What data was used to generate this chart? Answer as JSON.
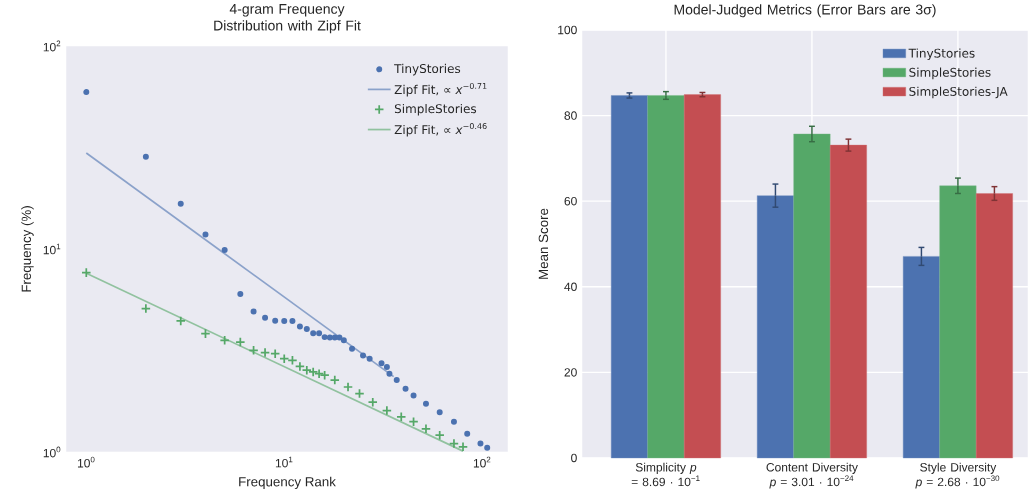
{
  "chart_data": [
    {
      "type": "scatter",
      "title": "4-gram Frequency Distribution with Zipf Fit",
      "xlabel": "Frequency Rank",
      "ylabel": "Frequency (%)",
      "log": "xy",
      "xlim": [
        0.79,
        135
      ],
      "ylim": [
        1,
        100
      ],
      "xticks": [
        {
          "value": 1,
          "label": "10$^{0}$"
        },
        {
          "value": 10,
          "label": "10$^{1}$"
        },
        {
          "value": 100,
          "label": "10$^{2}$"
        }
      ],
      "yticks": [
        {
          "value": 1,
          "label": "10$^{0}$"
        },
        {
          "value": 10,
          "label": "10$^{1}$"
        },
        {
          "value": 100,
          "label": "10$^{2}$"
        }
      ],
      "legend": "top right",
      "series": [
        {
          "name": "TinyStories",
          "type": "scatter",
          "marker": "circle",
          "color": "#4c72b0",
          "x": [
            1,
            2,
            3,
            4,
            5,
            6,
            7,
            8,
            9,
            10,
            11,
            12,
            13,
            14,
            15,
            16,
            17,
            18,
            19,
            20,
            22,
            25,
            27,
            31,
            33,
            34,
            37,
            41,
            45,
            52,
            61,
            72,
            84,
            98,
            106
          ],
          "values": [
            59.3,
            28.5,
            16.7,
            11.8,
            9.9,
            6.0,
            4.92,
            4.59,
            4.43,
            4.42,
            4.42,
            4.15,
            4.03,
            3.85,
            3.85,
            3.68,
            3.66,
            3.66,
            3.66,
            3.55,
            3.23,
            2.99,
            2.88,
            2.74,
            2.62,
            2.43,
            2.26,
            2.05,
            1.9,
            1.73,
            1.57,
            1.41,
            1.23,
            1.1,
            1.05
          ]
        },
        {
          "name": "Zipf Fit, ∝ *x*$^{−0.71}$",
          "type": "line",
          "color": "#8ba2ca",
          "x": [
            1,
            35.7
          ],
          "values": [
            29.7,
            2.35
          ]
        },
        {
          "name": "SimpleStories",
          "type": "scatter",
          "marker": "cross",
          "color": "#55a868",
          "x": [
            1,
            2,
            3,
            4,
            5,
            6,
            7,
            8,
            9,
            10,
            11,
            12,
            13,
            14,
            15,
            16,
            18,
            21,
            24,
            28,
            33,
            39,
            45,
            52,
            61,
            72,
            80
          ],
          "values": [
            7.65,
            5.09,
            4.42,
            3.83,
            3.55,
            3.48,
            3.17,
            3.09,
            3.05,
            2.88,
            2.83,
            2.64,
            2.53,
            2.48,
            2.43,
            2.39,
            2.26,
            2.09,
            1.94,
            1.76,
            1.6,
            1.49,
            1.41,
            1.3,
            1.21,
            1.1,
            1.06
          ]
        },
        {
          "name": "Zipf Fit, ∝ *x*$^{−0.46}$",
          "type": "line",
          "color": "#91c29f",
          "x": [
            1,
            80
          ],
          "values": [
            7.6,
            1.01
          ]
        }
      ]
    },
    {
      "type": "bar",
      "title": "Model-Judged Metrics (Error Bars are 3σ)",
      "ylabel": "Mean Score",
      "ylim": [
        0,
        100
      ],
      "yticks": [
        0,
        20,
        40,
        60,
        80,
        100
      ],
      "grid": true,
      "legend": "top right",
      "categories": [
        "Simplicity *p* = 8.69 · 10$^{−1}$",
        "Content Diversity *p* = 3.01 · 10$^{−24}$",
        "Style Diversity *p* = 2.68 · 10$^{−30}$"
      ],
      "series": [
        {
          "name": "TinyStories",
          "color": "#4c72b0",
          "values": [
            84.7,
            61.3,
            47.1
          ],
          "errors": [
            0.6,
            2.7,
            2.1
          ]
        },
        {
          "name": "SimpleStories",
          "color": "#55a868",
          "values": [
            84.7,
            75.7,
            63.6
          ],
          "errors": [
            0.9,
            1.8,
            1.8
          ]
        },
        {
          "name": "SimpleStories-JA",
          "color": "#c44e52",
          "values": [
            84.9,
            73.1,
            61.8
          ],
          "errors": [
            0.5,
            1.4,
            1.6
          ]
        }
      ]
    }
  ]
}
